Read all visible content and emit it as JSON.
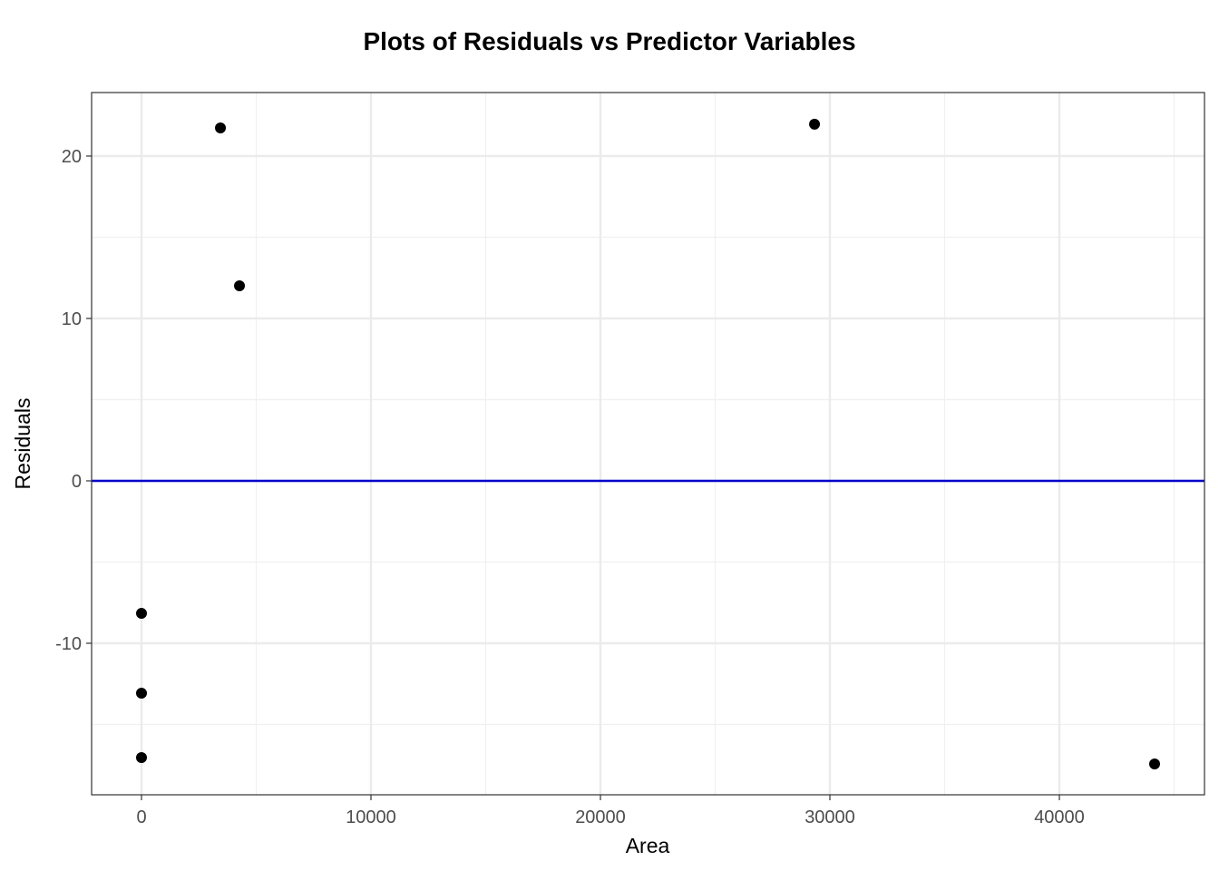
{
  "chart_data": {
    "type": "scatter",
    "title": "Plots of Residuals vs Predictor Variables",
    "x_label": "Area",
    "y_label": "Residuals",
    "x": [
      3440,
      4270,
      29330,
      0,
      0,
      0,
      44150
    ],
    "values": [
      21.73,
      12.01,
      21.96,
      -8.16,
      -13.07,
      -17.04,
      -17.43
    ],
    "color": "#000000",
    "xlim": [
      -2174,
      46324
    ],
    "ylim": [
      -19.33,
      23.91
    ],
    "xticks": [
      0,
      10000,
      20000,
      30000,
      40000
    ],
    "yticks": [
      -10,
      0,
      10,
      20
    ],
    "xminor": [
      5000,
      15000,
      25000,
      35000,
      45000
    ],
    "yminor": [
      -15,
      -5,
      5,
      15
    ],
    "grid": true,
    "hline": 0,
    "hline_color": "#0000cc"
  }
}
